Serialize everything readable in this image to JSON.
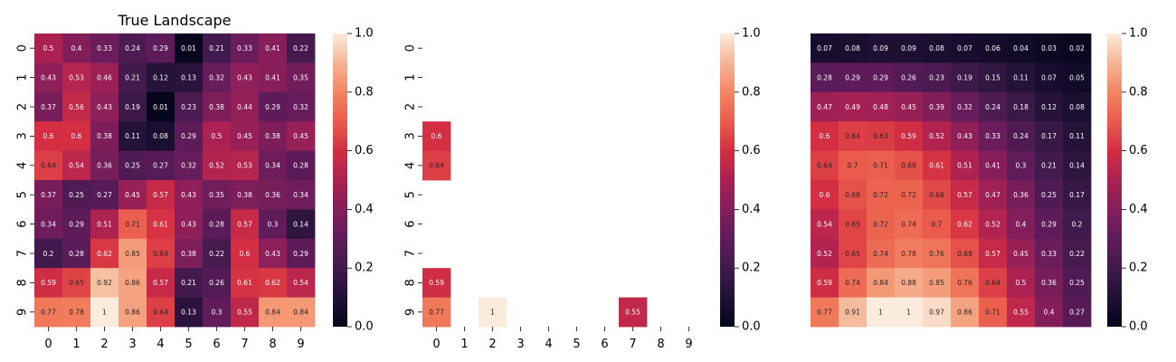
{
  "chart_data": [
    {
      "type": "heatmap",
      "title": "True Landscape",
      "x_ticks": [
        "0",
        "1",
        "2",
        "3",
        "4",
        "5",
        "6",
        "7",
        "8",
        "9"
      ],
      "y_ticks": [
        "0",
        "1",
        "2",
        "3",
        "4",
        "5",
        "6",
        "7",
        "8",
        "9"
      ],
      "vmin": 0,
      "vmax": 1,
      "colormap": "rocket",
      "colorbar_ticks": [
        "0.0",
        "0.2",
        "0.4",
        "0.6",
        "0.8",
        "1.0"
      ],
      "x_tick_labels_shown": true,
      "values": [
        [
          0.5,
          0.4,
          0.33,
          0.24,
          0.29,
          0.01,
          0.21,
          0.33,
          0.41,
          0.22
        ],
        [
          0.43,
          0.53,
          0.46,
          0.21,
          0.12,
          0.13,
          0.32,
          0.43,
          0.41,
          0.35
        ],
        [
          0.37,
          0.56,
          0.43,
          0.19,
          0.01,
          0.23,
          0.38,
          0.44,
          0.29,
          0.32
        ],
        [
          0.6,
          0.6,
          0.38,
          0.11,
          0.08,
          0.29,
          0.5,
          0.45,
          0.38,
          0.45
        ],
        [
          0.64,
          0.54,
          0.36,
          0.25,
          0.27,
          0.32,
          0.52,
          0.53,
          0.34,
          0.28
        ],
        [
          0.37,
          0.25,
          0.27,
          0.45,
          0.57,
          0.43,
          0.35,
          0.38,
          0.36,
          0.34
        ],
        [
          0.34,
          0.29,
          0.51,
          0.71,
          0.61,
          0.43,
          0.28,
          0.57,
          0.3,
          0.14
        ],
        [
          0.2,
          0.28,
          0.62,
          0.85,
          0.64,
          0.38,
          0.22,
          0.6,
          0.43,
          0.29
        ],
        [
          0.59,
          0.65,
          0.92,
          0.86,
          0.57,
          0.21,
          0.26,
          0.61,
          0.62,
          0.54
        ],
        [
          0.77,
          0.78,
          1,
          0.86,
          0.64,
          0.13,
          0.3,
          0.55,
          0.84,
          0.84
        ]
      ]
    },
    {
      "type": "heatmap",
      "title": "",
      "x_ticks": [
        "0",
        "1",
        "2",
        "3",
        "4",
        "5",
        "6",
        "7",
        "8",
        "9"
      ],
      "y_ticks": [
        "0",
        "1",
        "2",
        "3",
        "4",
        "5",
        "6",
        "7",
        "8",
        "9"
      ],
      "vmin": 0,
      "vmax": 1,
      "colormap": "rocket",
      "colorbar_ticks": [
        "0.0",
        "0.2",
        "0.4",
        "0.6",
        "0.8",
        "1.0"
      ],
      "x_tick_labels_shown": true,
      "values": [
        [
          null,
          null,
          null,
          null,
          null,
          null,
          null,
          null,
          null,
          null
        ],
        [
          null,
          null,
          null,
          null,
          null,
          null,
          null,
          null,
          null,
          null
        ],
        [
          null,
          null,
          null,
          null,
          null,
          null,
          null,
          null,
          null,
          null
        ],
        [
          0.6,
          null,
          null,
          null,
          null,
          null,
          null,
          null,
          null,
          null
        ],
        [
          0.64,
          null,
          null,
          null,
          null,
          null,
          null,
          null,
          null,
          null
        ],
        [
          null,
          null,
          null,
          null,
          null,
          null,
          null,
          null,
          null,
          null
        ],
        [
          null,
          null,
          null,
          null,
          null,
          null,
          null,
          null,
          null,
          null
        ],
        [
          null,
          null,
          null,
          null,
          null,
          null,
          null,
          null,
          null,
          null
        ],
        [
          0.59,
          null,
          null,
          null,
          null,
          null,
          null,
          null,
          null,
          null
        ],
        [
          0.77,
          null,
          1,
          null,
          null,
          null,
          null,
          0.55,
          null,
          null
        ]
      ]
    },
    {
      "type": "heatmap",
      "title": "",
      "x_ticks": [],
      "y_ticks": [],
      "vmin": 0,
      "vmax": 1,
      "colormap": "rocket",
      "colorbar_ticks": [
        "0.0",
        "0.2",
        "0.4",
        "0.6",
        "0.8",
        "1.0"
      ],
      "x_tick_labels_shown": false,
      "values": [
        [
          0.07,
          0.08,
          0.09,
          0.09,
          0.08,
          0.07,
          0.06,
          0.04,
          0.03,
          0.02
        ],
        [
          0.28,
          0.29,
          0.29,
          0.26,
          0.23,
          0.19,
          0.15,
          0.11,
          0.07,
          0.05
        ],
        [
          0.47,
          0.49,
          0.48,
          0.45,
          0.39,
          0.32,
          0.24,
          0.18,
          0.12,
          0.08
        ],
        [
          0.6,
          0.64,
          0.63,
          0.59,
          0.52,
          0.43,
          0.33,
          0.24,
          0.17,
          0.11
        ],
        [
          0.64,
          0.7,
          0.71,
          0.68,
          0.61,
          0.51,
          0.41,
          0.3,
          0.21,
          0.14
        ],
        [
          0.6,
          0.68,
          0.72,
          0.72,
          0.66,
          0.57,
          0.47,
          0.36,
          0.25,
          0.17
        ],
        [
          0.54,
          0.65,
          0.72,
          0.74,
          0.7,
          0.62,
          0.52,
          0.4,
          0.29,
          0.2
        ],
        [
          0.52,
          0.65,
          0.74,
          0.78,
          0.76,
          0.68,
          0.57,
          0.45,
          0.33,
          0.22
        ],
        [
          0.59,
          0.74,
          0.84,
          0.88,
          0.85,
          0.76,
          0.64,
          0.5,
          0.36,
          0.25
        ],
        [
          0.77,
          0.91,
          1,
          1,
          0.97,
          0.86,
          0.71,
          0.55,
          0.4,
          0.27
        ]
      ]
    }
  ]
}
